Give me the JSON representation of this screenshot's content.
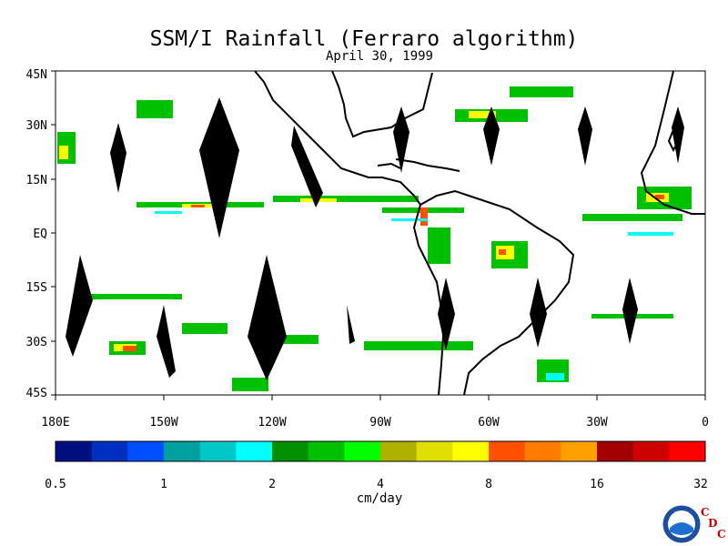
{
  "title": "SSM/I Rainfall (Ferraro algorithm)",
  "subtitle": "April 30, 1999",
  "lat_labels": [
    "45N",
    "30N",
    "15N",
    "EQ",
    "15S",
    "30S",
    "45S"
  ],
  "lon_labels": [
    "180E",
    "150W",
    "120W",
    "90W",
    "60W",
    "30W",
    "0"
  ],
  "colorbar": {
    "unit": "cm/day",
    "tick_labels": [
      "0.5",
      "1",
      "2",
      "4",
      "8",
      "16",
      "32"
    ],
    "colors": [
      "#00107f",
      "#0030c0",
      "#0050ff",
      "#00a0a0",
      "#00c8c8",
      "#00ffff",
      "#009000",
      "#00c000",
      "#00ff00",
      "#b0b000",
      "#e0e000",
      "#ffff00",
      "#ff5000",
      "#ff7c00",
      "#ffa000",
      "#a00000",
      "#cc0000",
      "#ff0000"
    ]
  },
  "logo": {
    "name": "NOAA",
    "text": "NOAA",
    "org_letters": [
      "C",
      "D",
      "C"
    ]
  }
}
